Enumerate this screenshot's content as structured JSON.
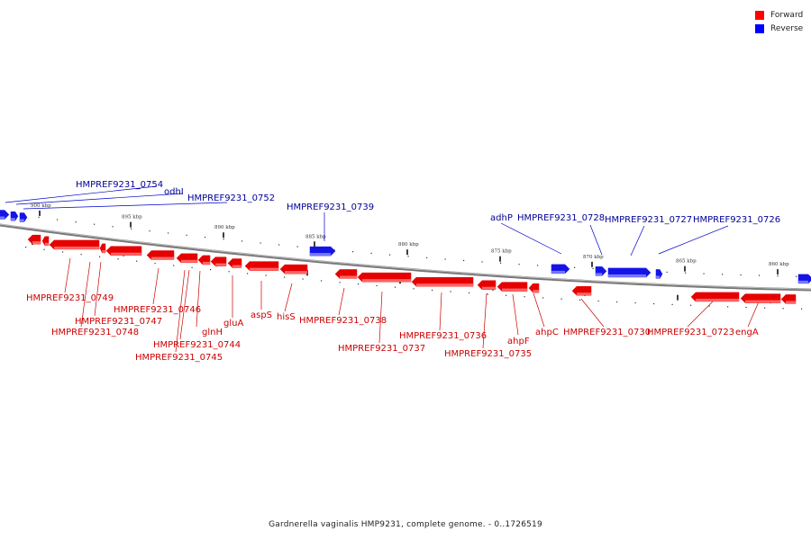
{
  "legend": {
    "forward_label": "Forward",
    "reverse_label": "Reverse",
    "forward_color": "#ff0000",
    "reverse_color": "#0000ff"
  },
  "colors": {
    "forward_fill": "#e60000",
    "forward_shade": "#ff6666",
    "reverse_fill": "#1414e6",
    "reverse_shade": "#7878ff",
    "forward_text": "#cc0000",
    "reverse_text": "#000099",
    "backbone": "#777777"
  },
  "caption": "Gardnerella vaginalis HMP9231, complete genome. - 0..1726519",
  "ticks": [
    {
      "label": "900 kbp"
    },
    {
      "label": "895 kbp"
    },
    {
      "label": "890 kbp"
    },
    {
      "label": "885 kbp"
    },
    {
      "label": "880 kbp"
    },
    {
      "label": "875 kbp"
    },
    {
      "label": "870 kbp"
    },
    {
      "label": "865 kbp"
    },
    {
      "label": "860 kbp"
    }
  ],
  "reverse_labels": [
    {
      "text": "HMPREF9231_0754"
    },
    {
      "text": "odhI"
    },
    {
      "text": "HMPREF9231_0752"
    },
    {
      "text": "HMPREF9231_0739"
    },
    {
      "text": "adhP"
    },
    {
      "text": "HMPREF9231_0728"
    },
    {
      "text": "HMPREF9231_0727"
    },
    {
      "text": "HMPREF9231_0726"
    }
  ],
  "forward_labels": [
    {
      "text": "HMPREF9231_0749"
    },
    {
      "text": "HMPREF9231_0747"
    },
    {
      "text": "HMPREF9231_0748"
    },
    {
      "text": "HMPREF9231_0746"
    },
    {
      "text": "glnH"
    },
    {
      "text": "HMPREF9231_0744"
    },
    {
      "text": "HMPREF9231_0745"
    },
    {
      "text": "gluA"
    },
    {
      "text": "aspS"
    },
    {
      "text": "hisS"
    },
    {
      "text": "HMPREF9231_0738"
    },
    {
      "text": "HMPREF9231_0737"
    },
    {
      "text": "HMPREF9231_0736"
    },
    {
      "text": "HMPREF9231_0735"
    },
    {
      "text": "ahpF"
    },
    {
      "text": "ahpC"
    },
    {
      "text": "HMPREF9231_0730"
    },
    {
      "text": "HMPREF9231_0723"
    },
    {
      "text": "engA"
    }
  ]
}
